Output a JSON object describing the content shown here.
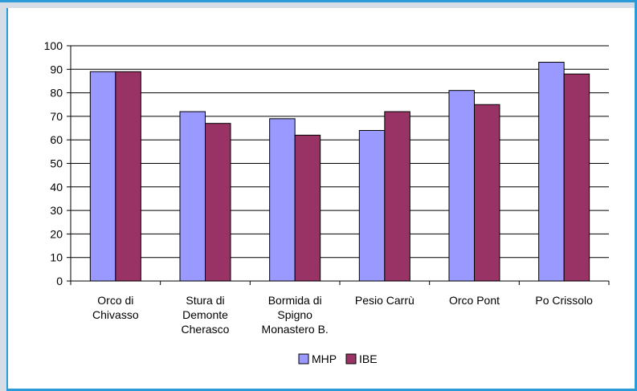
{
  "chart_data": {
    "type": "bar",
    "categories": [
      [
        "Orco di",
        "Chivasso"
      ],
      [
        "Stura di",
        "Demonte",
        "Cherasco"
      ],
      [
        "Bormida di",
        "Spigno",
        "Monastero B."
      ],
      [
        "Pesio Carrù"
      ],
      [
        "Orco Pont"
      ],
      [
        "Po Crissolo"
      ]
    ],
    "series": [
      {
        "name": "MHP",
        "color": "#9999ff",
        "values": [
          89,
          72,
          69,
          64,
          81,
          93
        ]
      },
      {
        "name": "IBE",
        "color": "#993366",
        "values": [
          89,
          67,
          62,
          72,
          75,
          88
        ]
      }
    ],
    "ylim": [
      0,
      100
    ],
    "yticks": [
      0,
      10,
      20,
      30,
      40,
      50,
      60,
      70,
      80,
      90,
      100
    ],
    "grid": true,
    "legend": "bottom",
    "title": "",
    "xlabel": "",
    "ylabel": ""
  }
}
